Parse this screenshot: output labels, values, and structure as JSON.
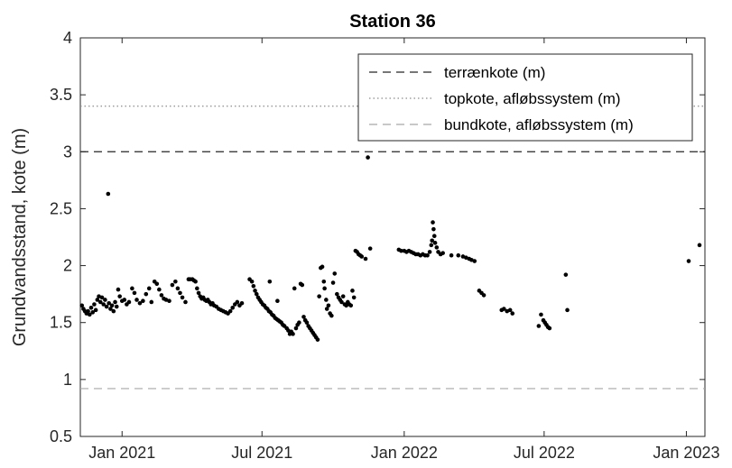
{
  "chart_data": {
    "type": "scatter",
    "title": "Station 36",
    "xlabel": "",
    "ylabel": "Grundvandsstand, kote (m)",
    "x_type": "date",
    "xlim": [
      "2020-11-08",
      "2023-01-25"
    ],
    "ylim": [
      0.5,
      4
    ],
    "y_ticks": [
      0.5,
      1,
      1.5,
      2,
      2.5,
      3,
      3.5,
      4
    ],
    "y_tick_labels": [
      "0.5",
      "1",
      "1.5",
      "2",
      "2.5",
      "3",
      "3.5",
      "4"
    ],
    "x_ticks": [
      "2021-01-01",
      "2021-07-01",
      "2022-01-01",
      "2022-07-01",
      "2023-01-01"
    ],
    "x_tick_labels": [
      "Jan 2021",
      "Jul 2021",
      "Jan 2022",
      "Jul 2022",
      "Jan 2023"
    ],
    "grid": false,
    "legend_position": "top-right",
    "reference_lines": [
      {
        "name": "terrænkote (m)",
        "y": 3.0,
        "style": "dashed",
        "color": "#262626"
      },
      {
        "name": "topkote, afløbssystem (m)",
        "y": 3.4,
        "style": "dotted",
        "color": "#8c8c8c"
      },
      {
        "name": "bundkote, afløbssystem (m)",
        "y": 0.92,
        "style": "dashed",
        "color": "#a6a6a6"
      }
    ],
    "marker_color": "#000000",
    "points": [
      [
        "2020-11-10",
        1.65
      ],
      [
        "2020-11-12",
        1.62
      ],
      [
        "2020-11-14",
        1.6
      ],
      [
        "2020-11-16",
        1.58
      ],
      [
        "2020-11-18",
        1.6
      ],
      [
        "2020-11-20",
        1.57
      ],
      [
        "2020-11-22",
        1.63
      ],
      [
        "2020-11-24",
        1.59
      ],
      [
        "2020-11-26",
        1.66
      ],
      [
        "2020-11-28",
        1.61
      ],
      [
        "2020-11-30",
        1.7
      ],
      [
        "2020-12-02",
        1.73
      ],
      [
        "2020-12-04",
        1.68
      ],
      [
        "2020-12-06",
        1.72
      ],
      [
        "2020-12-08",
        1.66
      ],
      [
        "2020-12-10",
        1.7
      ],
      [
        "2020-12-12",
        1.64
      ],
      [
        "2020-12-14",
        2.63
      ],
      [
        "2020-12-15",
        1.67
      ],
      [
        "2020-12-17",
        1.62
      ],
      [
        "2020-12-19",
        1.65
      ],
      [
        "2020-12-21",
        1.6
      ],
      [
        "2020-12-23",
        1.68
      ],
      [
        "2020-12-25",
        1.64
      ],
      [
        "2020-12-27",
        1.79
      ],
      [
        "2020-12-29",
        1.73
      ],
      [
        "2021-01-01",
        1.69
      ],
      [
        "2021-01-04",
        1.7
      ],
      [
        "2021-01-07",
        1.66
      ],
      [
        "2021-01-10",
        1.68
      ],
      [
        "2021-01-14",
        1.8
      ],
      [
        "2021-01-17",
        1.76
      ],
      [
        "2021-01-20",
        1.7
      ],
      [
        "2021-01-24",
        1.67
      ],
      [
        "2021-01-28",
        1.69
      ],
      [
        "2021-02-01",
        1.75
      ],
      [
        "2021-02-05",
        1.8
      ],
      [
        "2021-02-08",
        1.68
      ],
      [
        "2021-02-12",
        1.86
      ],
      [
        "2021-02-15",
        1.84
      ],
      [
        "2021-02-18",
        1.79
      ],
      [
        "2021-02-21",
        1.74
      ],
      [
        "2021-02-24",
        1.71
      ],
      [
        "2021-02-27",
        1.7
      ],
      [
        "2021-03-03",
        1.69
      ],
      [
        "2021-03-07",
        1.83
      ],
      [
        "2021-03-11",
        1.86
      ],
      [
        "2021-03-14",
        1.8
      ],
      [
        "2021-03-17",
        1.76
      ],
      [
        "2021-03-20",
        1.72
      ],
      [
        "2021-03-24",
        1.68
      ],
      [
        "2021-03-28",
        1.88
      ],
      [
        "2021-03-30",
        1.88
      ],
      [
        "2021-04-02",
        1.88
      ],
      [
        "2021-04-04",
        1.87
      ],
      [
        "2021-04-06",
        1.86
      ],
      [
        "2021-04-08",
        1.8
      ],
      [
        "2021-04-10",
        1.76
      ],
      [
        "2021-04-12",
        1.73
      ],
      [
        "2021-04-14",
        1.71
      ],
      [
        "2021-04-16",
        1.72
      ],
      [
        "2021-04-18",
        1.7
      ],
      [
        "2021-04-20",
        1.69
      ],
      [
        "2021-04-22",
        1.7
      ],
      [
        "2021-04-24",
        1.68
      ],
      [
        "2021-04-26",
        1.66
      ],
      [
        "2021-04-28",
        1.67
      ],
      [
        "2021-04-30",
        1.65
      ],
      [
        "2021-05-03",
        1.64
      ],
      [
        "2021-05-06",
        1.62
      ],
      [
        "2021-05-09",
        1.61
      ],
      [
        "2021-05-12",
        1.6
      ],
      [
        "2021-05-15",
        1.59
      ],
      [
        "2021-05-18",
        1.58
      ],
      [
        "2021-05-21",
        1.6
      ],
      [
        "2021-05-24",
        1.63
      ],
      [
        "2021-05-27",
        1.66
      ],
      [
        "2021-05-30",
        1.68
      ],
      [
        "2021-06-02",
        1.65
      ],
      [
        "2021-06-05",
        1.67
      ],
      [
        "2021-06-15",
        1.88
      ],
      [
        "2021-06-18",
        1.86
      ],
      [
        "2021-06-20",
        1.82
      ],
      [
        "2021-06-22",
        1.78
      ],
      [
        "2021-06-24",
        1.75
      ],
      [
        "2021-06-26",
        1.72
      ],
      [
        "2021-06-28",
        1.7
      ],
      [
        "2021-06-30",
        1.68
      ],
      [
        "2021-07-02",
        1.66
      ],
      [
        "2021-07-04",
        1.65
      ],
      [
        "2021-07-06",
        1.63
      ],
      [
        "2021-07-08",
        1.62
      ],
      [
        "2021-07-10",
        1.6
      ],
      [
        "2021-07-12",
        1.59
      ],
      [
        "2021-07-14",
        1.57
      ],
      [
        "2021-07-16",
        1.56
      ],
      [
        "2021-07-18",
        1.54
      ],
      [
        "2021-07-20",
        1.53
      ],
      [
        "2021-07-22",
        1.52
      ],
      [
        "2021-07-24",
        1.51
      ],
      [
        "2021-07-26",
        1.5
      ],
      [
        "2021-07-28",
        1.48
      ],
      [
        "2021-07-30",
        1.47
      ],
      [
        "2021-07-11",
        1.86
      ],
      [
        "2021-07-21",
        1.69
      ],
      [
        "2021-08-02",
        1.45
      ],
      [
        "2021-08-04",
        1.43
      ],
      [
        "2021-08-06",
        1.4
      ],
      [
        "2021-08-08",
        1.42
      ],
      [
        "2021-08-10",
        1.4
      ],
      [
        "2021-08-12",
        1.8
      ],
      [
        "2021-08-14",
        1.45
      ],
      [
        "2021-08-16",
        1.48
      ],
      [
        "2021-08-18",
        1.5
      ],
      [
        "2021-08-20",
        1.84
      ],
      [
        "2021-08-22",
        1.83
      ],
      [
        "2021-08-24",
        1.55
      ],
      [
        "2021-08-26",
        1.52
      ],
      [
        "2021-08-28",
        1.5
      ],
      [
        "2021-08-30",
        1.47
      ],
      [
        "2021-09-01",
        1.45
      ],
      [
        "2021-09-03",
        1.43
      ],
      [
        "2021-09-05",
        1.41
      ],
      [
        "2021-09-07",
        1.39
      ],
      [
        "2021-09-09",
        1.37
      ],
      [
        "2021-09-11",
        1.35
      ],
      [
        "2021-09-13",
        1.73
      ],
      [
        "2021-09-15",
        1.98
      ],
      [
        "2021-09-17",
        1.99
      ],
      [
        "2021-09-19",
        1.86
      ],
      [
        "2021-09-20",
        1.8
      ],
      [
        "2021-09-22",
        1.7
      ],
      [
        "2021-09-23",
        1.62
      ],
      [
        "2021-09-25",
        1.65
      ],
      [
        "2021-09-27",
        1.58
      ],
      [
        "2021-09-29",
        1.56
      ],
      [
        "2021-10-01",
        1.85
      ],
      [
        "2021-10-03",
        1.93
      ],
      [
        "2021-10-06",
        1.75
      ],
      [
        "2021-10-08",
        1.72
      ],
      [
        "2021-10-10",
        1.7
      ],
      [
        "2021-10-12",
        1.68
      ],
      [
        "2021-10-14",
        1.73
      ],
      [
        "2021-10-16",
        1.66
      ],
      [
        "2021-10-18",
        1.65
      ],
      [
        "2021-10-20",
        1.68
      ],
      [
        "2021-10-22",
        1.66
      ],
      [
        "2021-10-24",
        1.65
      ],
      [
        "2021-10-26",
        1.78
      ],
      [
        "2021-10-28",
        1.72
      ],
      [
        "2021-10-30",
        2.13
      ],
      [
        "2021-11-01",
        2.12
      ],
      [
        "2021-11-03",
        2.1
      ],
      [
        "2021-11-05",
        2.09
      ],
      [
        "2021-11-07",
        2.08
      ],
      [
        "2021-11-12",
        2.06
      ],
      [
        "2021-11-15",
        2.95
      ],
      [
        "2021-11-18",
        2.15
      ],
      [
        "2021-12-25",
        2.14
      ],
      [
        "2021-12-28",
        2.13
      ],
      [
        "2022-01-01",
        2.13
      ],
      [
        "2022-01-04",
        2.12
      ],
      [
        "2022-01-07",
        2.13
      ],
      [
        "2022-01-10",
        2.12
      ],
      [
        "2022-01-13",
        2.11
      ],
      [
        "2022-01-16",
        2.1
      ],
      [
        "2022-01-19",
        2.1
      ],
      [
        "2022-01-22",
        2.09
      ],
      [
        "2022-01-25",
        2.1
      ],
      [
        "2022-01-28",
        2.09
      ],
      [
        "2022-01-31",
        2.09
      ],
      [
        "2022-02-03",
        2.12
      ],
      [
        "2022-02-05",
        2.18
      ],
      [
        "2022-02-06",
        2.22
      ],
      [
        "2022-02-07",
        2.38
      ],
      [
        "2022-02-08",
        2.32
      ],
      [
        "2022-02-09",
        2.26
      ],
      [
        "2022-02-10",
        2.2
      ],
      [
        "2022-02-12",
        2.16
      ],
      [
        "2022-02-14",
        2.12
      ],
      [
        "2022-02-17",
        2.1
      ],
      [
        "2022-02-20",
        2.11
      ],
      [
        "2022-03-03",
        2.09
      ],
      [
        "2022-03-12",
        2.09
      ],
      [
        "2022-03-18",
        2.08
      ],
      [
        "2022-03-22",
        2.07
      ],
      [
        "2022-03-26",
        2.06
      ],
      [
        "2022-03-29",
        2.05
      ],
      [
        "2022-04-02",
        2.04
      ],
      [
        "2022-04-08",
        1.78
      ],
      [
        "2022-04-11",
        1.76
      ],
      [
        "2022-04-14",
        1.74
      ],
      [
        "2022-05-07",
        1.61
      ],
      [
        "2022-05-10",
        1.62
      ],
      [
        "2022-05-14",
        1.6
      ],
      [
        "2022-05-18",
        1.61
      ],
      [
        "2022-05-21",
        1.58
      ],
      [
        "2022-06-24",
        1.47
      ],
      [
        "2022-06-27",
        1.57
      ],
      [
        "2022-06-30",
        1.52
      ],
      [
        "2022-07-02",
        1.5
      ],
      [
        "2022-07-04",
        1.48
      ],
      [
        "2022-07-06",
        1.46
      ],
      [
        "2022-07-08",
        1.45
      ],
      [
        "2022-07-29",
        1.92
      ],
      [
        "2022-07-31",
        1.61
      ],
      [
        "2023-01-04",
        2.04
      ],
      [
        "2023-01-18",
        2.18
      ]
    ]
  }
}
